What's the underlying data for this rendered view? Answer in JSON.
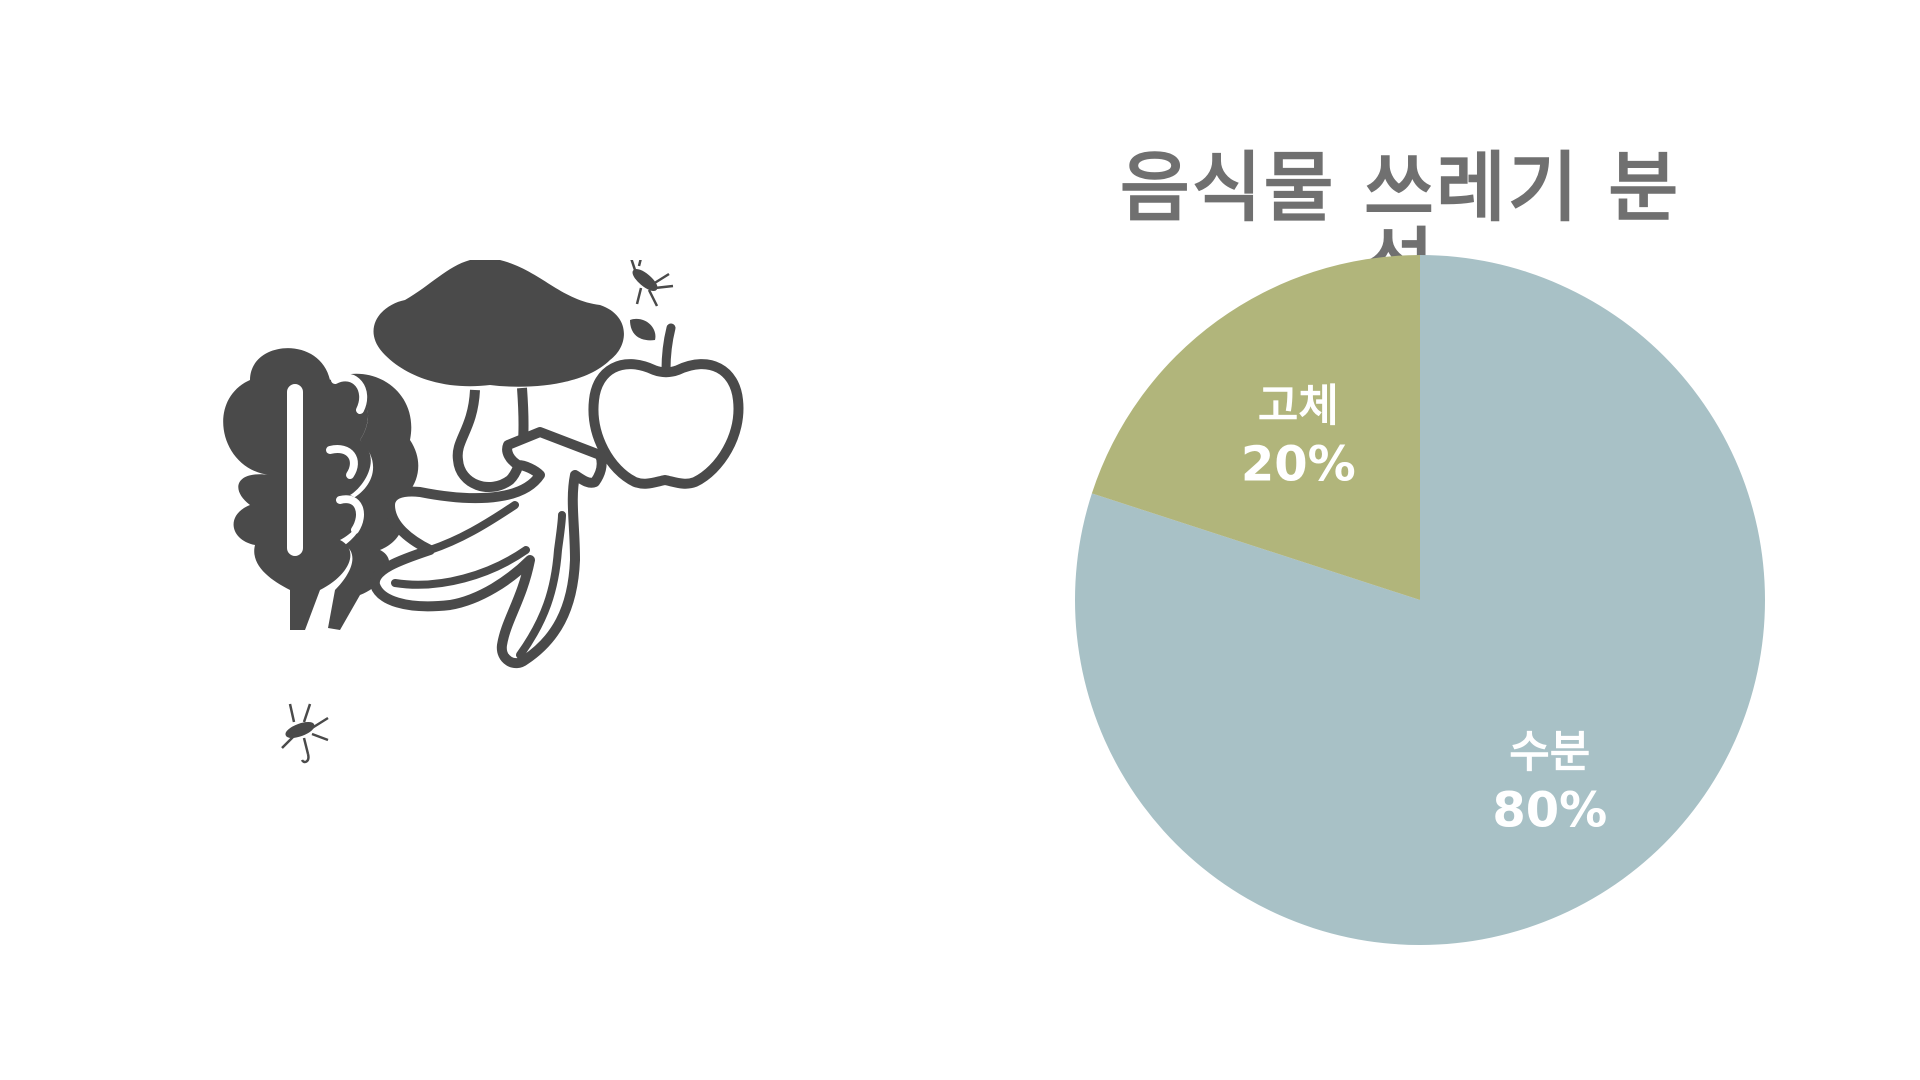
{
  "chart_data": {
    "type": "pie",
    "title": "음식물 쓰레기 분석",
    "slices": [
      {
        "label": "수분",
        "value": 80,
        "value_label": "80%",
        "color": "#a8c1c6"
      },
      {
        "label": "고체",
        "value": 20,
        "value_label": "20%",
        "color": "#b1b57b"
      }
    ],
    "start": "top",
    "direction": "clockwise",
    "label_color": "#ffffff"
  },
  "illustration": {
    "icons": [
      "lettuce-icon",
      "mushroom-icon",
      "apple-icon",
      "banana-peel-icon",
      "mosquito-icon"
    ],
    "color": "#4a4a4a"
  }
}
